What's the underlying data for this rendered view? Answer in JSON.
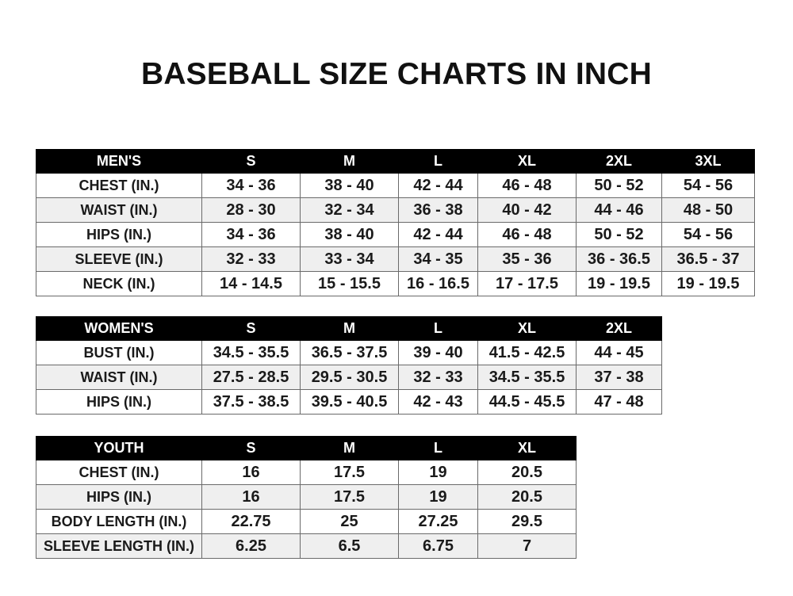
{
  "title": "BASEBALL SIZE CHARTS IN INCH",
  "men": {
    "header": [
      "MEN'S",
      "S",
      "M",
      "L",
      "XL",
      "2XL",
      "3XL"
    ],
    "rows": [
      [
        "CHEST (IN.)",
        "34 - 36",
        "38 - 40",
        "42 - 44",
        "46 - 48",
        "50 - 52",
        "54 - 56"
      ],
      [
        "WAIST (IN.)",
        "28 - 30",
        "32 - 34",
        "36 - 38",
        "40 - 42",
        "44 - 46",
        "48 - 50"
      ],
      [
        "HIPS (IN.)",
        "34 - 36",
        "38 - 40",
        "42 - 44",
        "46 - 48",
        "50 - 52",
        "54 - 56"
      ],
      [
        "SLEEVE (IN.)",
        "32 - 33",
        "33 - 34",
        "34 - 35",
        "35 - 36",
        "36 - 36.5",
        "36.5 - 37"
      ],
      [
        "NECK (IN.)",
        "14 - 14.5",
        "15 - 15.5",
        "16 - 16.5",
        "17 - 17.5",
        "19 - 19.5",
        "19 - 19.5"
      ]
    ]
  },
  "women": {
    "header": [
      "WOMEN'S",
      "S",
      "M",
      "L",
      "XL",
      "2XL"
    ],
    "rows": [
      [
        "BUST (IN.)",
        "34.5 - 35.5",
        "36.5 - 37.5",
        "39 - 40",
        "41.5 - 42.5",
        "44 - 45"
      ],
      [
        "WAIST (IN.)",
        "27.5 - 28.5",
        "29.5 - 30.5",
        "32 - 33",
        "34.5 - 35.5",
        "37 - 38"
      ],
      [
        "HIPS (IN.)",
        "37.5 - 38.5",
        "39.5 - 40.5",
        "42 - 43",
        "44.5 - 45.5",
        "47 - 48"
      ]
    ]
  },
  "youth": {
    "header": [
      "YOUTH",
      "S",
      "M",
      "L",
      "XL"
    ],
    "rows": [
      [
        "CHEST (IN.)",
        "16",
        "17.5",
        "19",
        "20.5"
      ],
      [
        "HIPS (IN.)",
        "16",
        "17.5",
        "19",
        "20.5"
      ],
      [
        "BODY LENGTH (IN.)",
        "22.75",
        "25",
        "27.25",
        "29.5"
      ],
      [
        "SLEEVE LENGTH (IN.)",
        "6.25",
        "6.5",
        "6.75",
        "7"
      ]
    ]
  }
}
